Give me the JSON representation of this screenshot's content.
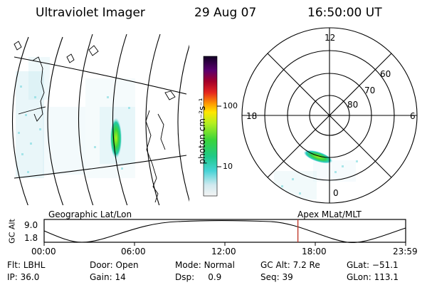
{
  "header": {
    "instrument": "Ultraviolet Imager",
    "date": "29 Aug 07",
    "time": "16:50:00 UT"
  },
  "colorbar": {
    "unit": "photon cm⁻²s⁻¹",
    "ticks": [
      "100",
      "10"
    ]
  },
  "polar_plot": {
    "mlt_labels": {
      "top": "12",
      "left": "18",
      "right": "6",
      "bottom": "0"
    },
    "lat_labels": [
      "60",
      "70",
      "80"
    ]
  },
  "timeline": {
    "axis_name": "GC Alt",
    "y_ticks": [
      "9.0",
      "1.8"
    ],
    "left_title": "Geographic Lat/Lon",
    "right_title": "Apex  MLat/MLT",
    "x_ticks": [
      "00:00",
      "06:00",
      "12:00",
      "18:00",
      "23:59"
    ],
    "current_time": "16:50",
    "marker_color": "#c0392b"
  },
  "status": {
    "row1": [
      {
        "key": "Flt:",
        "value": "LBHL"
      },
      {
        "key": "Door:",
        "value": "Open"
      },
      {
        "key": "Mode:",
        "value": "Normal"
      },
      {
        "key": "GC Alt:",
        "value": "7.2 Re"
      },
      {
        "key": "GLat:",
        "value": "−51.1"
      }
    ],
    "row2": [
      {
        "key": "IP:",
        "value": "36.0"
      },
      {
        "key": "Gain:",
        "value": "14"
      },
      {
        "key": "Dsp:",
        "value": "0.9"
      },
      {
        "key": "Seq:",
        "value": "39"
      },
      {
        "key": "GLon:",
        "value": "113.1"
      }
    ]
  }
}
